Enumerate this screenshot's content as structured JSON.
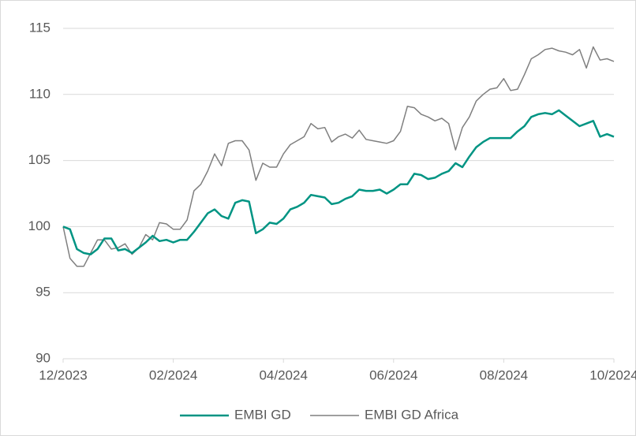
{
  "chart_data": {
    "type": "line",
    "x": [
      0,
      0.125,
      0.25,
      0.375,
      0.5,
      0.625,
      0.75,
      0.875,
      1,
      1.125,
      1.25,
      1.375,
      1.5,
      1.625,
      1.75,
      1.875,
      2,
      2.125,
      2.25,
      2.375,
      2.5,
      2.625,
      2.75,
      2.875,
      3,
      3.125,
      3.25,
      3.375,
      3.5,
      3.625,
      3.75,
      3.875,
      4,
      4.125,
      4.25,
      4.375,
      4.5,
      4.625,
      4.75,
      4.875,
      5,
      5.125,
      5.25,
      5.375,
      5.5,
      5.625,
      5.75,
      5.875,
      6,
      6.125,
      6.25,
      6.375,
      6.5,
      6.625,
      6.75,
      6.875,
      7,
      7.125,
      7.25,
      7.375,
      7.5,
      7.625,
      7.75,
      7.875,
      8,
      8.125,
      8.25,
      8.375,
      8.5,
      8.625,
      8.75,
      8.875,
      9,
      9.125,
      9.25,
      9.375,
      9.5,
      9.625,
      9.75,
      9.875,
      10
    ],
    "series": [
      {
        "name": "EMBI GD",
        "color": "#009483",
        "values": [
          100,
          99.8,
          98.3,
          98.0,
          97.9,
          98.3,
          99.1,
          99.1,
          98.2,
          98.3,
          98.0,
          98.4,
          98.8,
          99.3,
          98.9,
          99.0,
          98.8,
          99.0,
          99.0,
          99.6,
          100.3,
          101.0,
          101.3,
          100.8,
          100.6,
          101.8,
          102.0,
          101.9,
          99.5,
          99.8,
          100.3,
          100.2,
          100.6,
          101.3,
          101.5,
          101.8,
          102.4,
          102.3,
          102.2,
          101.7,
          101.8,
          102.1,
          102.3,
          102.8,
          102.7,
          102.7,
          102.8,
          102.5,
          102.8,
          103.2,
          103.2,
          104.0,
          103.9,
          103.6,
          103.7,
          104.0,
          104.2,
          104.8,
          104.5,
          105.3,
          106.0,
          106.4,
          106.7,
          106.7,
          106.7,
          106.7,
          107.2,
          107.6,
          108.3,
          108.5,
          108.6,
          108.5,
          108.8,
          108.4,
          108.0,
          107.6,
          107.8,
          108.0,
          106.8,
          107.0,
          106.8
        ]
      },
      {
        "name": "EMBI GD Africa",
        "color": "#7f7f7f",
        "values": [
          100,
          97.6,
          97.0,
          97.0,
          98.0,
          99.0,
          99.0,
          98.3,
          98.4,
          98.7,
          97.9,
          98.4,
          99.4,
          99.0,
          100.3,
          100.2,
          99.8,
          99.8,
          100.5,
          102.7,
          103.2,
          104.2,
          105.5,
          104.6,
          106.3,
          106.5,
          106.5,
          105.8,
          103.5,
          104.8,
          104.5,
          104.5,
          105.5,
          106.2,
          106.5,
          106.8,
          107.8,
          107.4,
          107.5,
          106.4,
          106.8,
          107.0,
          106.7,
          107.3,
          106.6,
          106.5,
          106.4,
          106.3,
          106.5,
          107.2,
          109.1,
          109.0,
          108.5,
          108.3,
          108.0,
          108.2,
          107.8,
          105.8,
          107.5,
          108.3,
          109.5,
          110.0,
          110.4,
          110.5,
          111.2,
          110.3,
          110.4,
          111.5,
          112.7,
          113.0,
          113.4,
          113.5,
          113.3,
          113.2,
          113.0,
          113.4,
          112.0,
          113.6,
          112.6,
          112.7,
          112.5
        ]
      }
    ],
    "xlim": [
      0,
      10
    ],
    "xticks": [
      {
        "value": 0,
        "label": "12/2023"
      },
      {
        "value": 2,
        "label": "02/2024"
      },
      {
        "value": 4,
        "label": "04/2024"
      },
      {
        "value": 6,
        "label": "06/2024"
      },
      {
        "value": 8,
        "label": "08/2024"
      },
      {
        "value": 10,
        "label": "10/2024"
      }
    ],
    "ylim": [
      90,
      115
    ],
    "yticks": [
      90,
      95,
      100,
      105,
      110,
      115
    ],
    "grid": true,
    "legend": "bottom"
  }
}
